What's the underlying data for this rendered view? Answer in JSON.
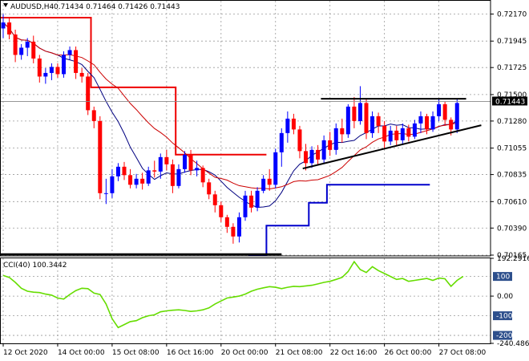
{
  "window": {
    "symbol_label": "AUDUSD,H4",
    "ohlc_label": "0.71434 0.71464 0.71426 0.71443",
    "current_price_tag": "0.71443"
  },
  "colors": {
    "bull": "#0000ff",
    "bear": "#ff0000",
    "fast_ma": "#000080",
    "slow_ma": "#cc0000",
    "stop_upper": "#ee0000",
    "stop_lower": "#0000cc",
    "trendline": "#000000",
    "cci": "#66dd00",
    "grid": "#9a9a9a"
  },
  "chart_data": [
    {
      "type": "candlestick",
      "title": "AUDUSD,H4",
      "x": [
        "12 Oct 2020",
        "14 Oct 00:00",
        "15 Oct 08:00",
        "16 Oct 16:00",
        "20 Oct 00:00",
        "21 Oct 08:00",
        "22 Oct 16:00",
        "26 Oct 00:00",
        "27 Oct 08:00"
      ],
      "ylim": [
        0.70165,
        0.7228
      ],
      "y_ticks": [
        "0.72170",
        "0.71945",
        "0.71725",
        "0.71500",
        "0.71280",
        "0.71055",
        "0.70835",
        "0.70610",
        "0.70390",
        "0.70165"
      ],
      "grid": true,
      "candles": [
        {
          "o": 0.7205,
          "h": 0.7217,
          "l": 0.7197,
          "c": 0.721
        },
        {
          "o": 0.721,
          "h": 0.7214,
          "l": 0.7196,
          "c": 0.72
        },
        {
          "o": 0.72,
          "h": 0.7204,
          "l": 0.7177,
          "c": 0.7183
        },
        {
          "o": 0.7183,
          "h": 0.7192,
          "l": 0.7179,
          "c": 0.7189
        },
        {
          "o": 0.7189,
          "h": 0.7197,
          "l": 0.7182,
          "c": 0.7194
        },
        {
          "o": 0.7194,
          "h": 0.7199,
          "l": 0.7176,
          "c": 0.718
        },
        {
          "o": 0.718,
          "h": 0.7183,
          "l": 0.716,
          "c": 0.7165
        },
        {
          "o": 0.7165,
          "h": 0.7172,
          "l": 0.7159,
          "c": 0.7168
        },
        {
          "o": 0.7168,
          "h": 0.7176,
          "l": 0.7162,
          "c": 0.7173
        },
        {
          "o": 0.7173,
          "h": 0.7176,
          "l": 0.7164,
          "c": 0.7167
        },
        {
          "o": 0.7167,
          "h": 0.7186,
          "l": 0.7164,
          "c": 0.7183
        },
        {
          "o": 0.7183,
          "h": 0.719,
          "l": 0.7179,
          "c": 0.7187
        },
        {
          "o": 0.7187,
          "h": 0.719,
          "l": 0.7163,
          "c": 0.7168
        },
        {
          "o": 0.7168,
          "h": 0.7172,
          "l": 0.716,
          "c": 0.7165
        },
        {
          "o": 0.7165,
          "h": 0.7168,
          "l": 0.7133,
          "c": 0.7137
        },
        {
          "o": 0.7137,
          "h": 0.714,
          "l": 0.7122,
          "c": 0.7128
        },
        {
          "o": 0.7128,
          "h": 0.7132,
          "l": 0.7063,
          "c": 0.7068
        },
        {
          "o": 0.7068,
          "h": 0.708,
          "l": 0.7059,
          "c": 0.7068
        },
        {
          "o": 0.7068,
          "h": 0.7088,
          "l": 0.7064,
          "c": 0.7082
        },
        {
          "o": 0.7082,
          "h": 0.7093,
          "l": 0.7078,
          "c": 0.709
        },
        {
          "o": 0.709,
          "h": 0.7094,
          "l": 0.7079,
          "c": 0.7083
        },
        {
          "o": 0.7083,
          "h": 0.7088,
          "l": 0.7072,
          "c": 0.7075
        },
        {
          "o": 0.7075,
          "h": 0.7084,
          "l": 0.7072,
          "c": 0.708
        },
        {
          "o": 0.708,
          "h": 0.7085,
          "l": 0.7071,
          "c": 0.7076
        },
        {
          "o": 0.7076,
          "h": 0.709,
          "l": 0.7074,
          "c": 0.7087
        },
        {
          "o": 0.7087,
          "h": 0.7095,
          "l": 0.7081,
          "c": 0.7086
        },
        {
          "o": 0.7086,
          "h": 0.7101,
          "l": 0.708,
          "c": 0.7098
        },
        {
          "o": 0.7098,
          "h": 0.7104,
          "l": 0.7087,
          "c": 0.7092
        },
        {
          "o": 0.7092,
          "h": 0.7096,
          "l": 0.7068,
          "c": 0.7074
        },
        {
          "o": 0.7074,
          "h": 0.7092,
          "l": 0.7072,
          "c": 0.7088
        },
        {
          "o": 0.7088,
          "h": 0.7103,
          "l": 0.7085,
          "c": 0.71
        },
        {
          "o": 0.71,
          "h": 0.7104,
          "l": 0.7083,
          "c": 0.7087
        },
        {
          "o": 0.7087,
          "h": 0.7095,
          "l": 0.7082,
          "c": 0.7089
        },
        {
          "o": 0.7089,
          "h": 0.7091,
          "l": 0.7073,
          "c": 0.7077
        },
        {
          "o": 0.7077,
          "h": 0.708,
          "l": 0.7063,
          "c": 0.7067
        },
        {
          "o": 0.7067,
          "h": 0.707,
          "l": 0.7052,
          "c": 0.7058
        },
        {
          "o": 0.7058,
          "h": 0.7061,
          "l": 0.7044,
          "c": 0.7048
        },
        {
          "o": 0.7048,
          "h": 0.705,
          "l": 0.7035,
          "c": 0.704
        },
        {
          "o": 0.704,
          "h": 0.7043,
          "l": 0.7026,
          "c": 0.7032
        },
        {
          "o": 0.7032,
          "h": 0.7052,
          "l": 0.7027,
          "c": 0.7048
        },
        {
          "o": 0.7048,
          "h": 0.707,
          "l": 0.7045,
          "c": 0.7066
        },
        {
          "o": 0.7066,
          "h": 0.707,
          "l": 0.7052,
          "c": 0.7056
        },
        {
          "o": 0.7056,
          "h": 0.7073,
          "l": 0.7053,
          "c": 0.707
        },
        {
          "o": 0.707,
          "h": 0.7083,
          "l": 0.7068,
          "c": 0.708
        },
        {
          "o": 0.708,
          "h": 0.7088,
          "l": 0.707,
          "c": 0.7075
        },
        {
          "o": 0.7075,
          "h": 0.7105,
          "l": 0.7072,
          "c": 0.7102
        },
        {
          "o": 0.7102,
          "h": 0.7122,
          "l": 0.709,
          "c": 0.7118
        },
        {
          "o": 0.7118,
          "h": 0.7136,
          "l": 0.711,
          "c": 0.713
        },
        {
          "o": 0.713,
          "h": 0.7134,
          "l": 0.7117,
          "c": 0.7121
        },
        {
          "o": 0.7121,
          "h": 0.7124,
          "l": 0.7097,
          "c": 0.7103
        },
        {
          "o": 0.7103,
          "h": 0.7109,
          "l": 0.7087,
          "c": 0.7093
        },
        {
          "o": 0.7093,
          "h": 0.7107,
          "l": 0.7089,
          "c": 0.7104
        },
        {
          "o": 0.7104,
          "h": 0.7108,
          "l": 0.7091,
          "c": 0.7096
        },
        {
          "o": 0.7096,
          "h": 0.7116,
          "l": 0.7093,
          "c": 0.7112
        },
        {
          "o": 0.7112,
          "h": 0.7119,
          "l": 0.7099,
          "c": 0.7104
        },
        {
          "o": 0.7104,
          "h": 0.7126,
          "l": 0.71,
          "c": 0.7122
        },
        {
          "o": 0.7122,
          "h": 0.713,
          "l": 0.711,
          "c": 0.7117
        },
        {
          "o": 0.7117,
          "h": 0.7142,
          "l": 0.7114,
          "c": 0.714
        },
        {
          "o": 0.714,
          "h": 0.7148,
          "l": 0.7122,
          "c": 0.7128
        },
        {
          "o": 0.7128,
          "h": 0.7157,
          "l": 0.7125,
          "c": 0.7143
        },
        {
          "o": 0.7143,
          "h": 0.7147,
          "l": 0.7113,
          "c": 0.7118
        },
        {
          "o": 0.7118,
          "h": 0.7136,
          "l": 0.7114,
          "c": 0.7132
        },
        {
          "o": 0.7132,
          "h": 0.7135,
          "l": 0.7118,
          "c": 0.7124
        },
        {
          "o": 0.7124,
          "h": 0.7128,
          "l": 0.7105,
          "c": 0.7111
        },
        {
          "o": 0.7111,
          "h": 0.7124,
          "l": 0.7108,
          "c": 0.712
        },
        {
          "o": 0.712,
          "h": 0.7124,
          "l": 0.7107,
          "c": 0.7112
        },
        {
          "o": 0.7112,
          "h": 0.7126,
          "l": 0.7108,
          "c": 0.7122
        },
        {
          "o": 0.7122,
          "h": 0.7125,
          "l": 0.7111,
          "c": 0.7115
        },
        {
          "o": 0.7115,
          "h": 0.7129,
          "l": 0.7113,
          "c": 0.7126
        },
        {
          "o": 0.7126,
          "h": 0.7136,
          "l": 0.7118,
          "c": 0.7132
        },
        {
          "o": 0.7132,
          "h": 0.7134,
          "l": 0.7117,
          "c": 0.7121
        },
        {
          "o": 0.7121,
          "h": 0.7136,
          "l": 0.7119,
          "c": 0.7132
        },
        {
          "o": 0.7132,
          "h": 0.7146,
          "l": 0.7128,
          "c": 0.7142
        },
        {
          "o": 0.7142,
          "h": 0.7144,
          "l": 0.7124,
          "c": 0.7129
        },
        {
          "o": 0.7129,
          "h": 0.7131,
          "l": 0.7116,
          "c": 0.7121
        },
        {
          "o": 0.7121,
          "h": 0.7146,
          "l": 0.7118,
          "c": 0.7143
        }
      ],
      "fast_ma_period": 10,
      "slow_ma_period": 20,
      "stop_line_upper": [
        {
          "from": 0,
          "to": 14,
          "y": 0.7214
        },
        {
          "from": 15,
          "to": 28,
          "y": 0.7156
        },
        {
          "from": 29,
          "to": 35,
          "y": 0.71
        },
        {
          "from": 36,
          "to": 43,
          "y": 0.71
        }
      ],
      "stop_line_lower": [
        {
          "from": 41,
          "to": 43,
          "y": 0.70165
        },
        {
          "from": 44,
          "to": 50,
          "y": 0.7041
        },
        {
          "from": 51,
          "to": 53,
          "y": 0.706
        },
        {
          "from": 54,
          "to": 70,
          "y": 0.7075
        }
      ],
      "horizontal_line": 0.71443,
      "resistance_line": {
        "x0": 52.5,
        "x1": 76.5,
        "y": 0.71465
      },
      "support_line": {
        "x0": 49.5,
        "y0": 0.70885,
        "x1": 79,
        "y1": 0.71245
      }
    },
    {
      "type": "line",
      "title": "CCI(40) 100.3442",
      "ylim": [
        -240.4861,
        192.2916
      ],
      "y_ticks": [
        "192.2916",
        "100",
        "0.00",
        "-100",
        "-200",
        "-240.4861"
      ],
      "levels": [
        100,
        0,
        -100,
        -200
      ],
      "series": [
        {
          "values": [
            105,
            95,
            70,
            40,
            25,
            20,
            18,
            10,
            5,
            -10,
            -15,
            8,
            28,
            40,
            38,
            15,
            8,
            -40,
            -115,
            -160,
            -145,
            -130,
            -125,
            -110,
            -100,
            -95,
            -80,
            -75,
            -72,
            -70,
            -73,
            -78,
            -75,
            -70,
            -60,
            -40,
            -25,
            -10,
            -5,
            0,
            10,
            25,
            35,
            42,
            48,
            45,
            38,
            45,
            50,
            48,
            52,
            55,
            62,
            70,
            75,
            85,
            95,
            125,
            175,
            135,
            120,
            150,
            130,
            115,
            100,
            85,
            90,
            75,
            80,
            85,
            90,
            80,
            92,
            88,
            50,
            80,
            100
          ]
        }
      ]
    }
  ]
}
